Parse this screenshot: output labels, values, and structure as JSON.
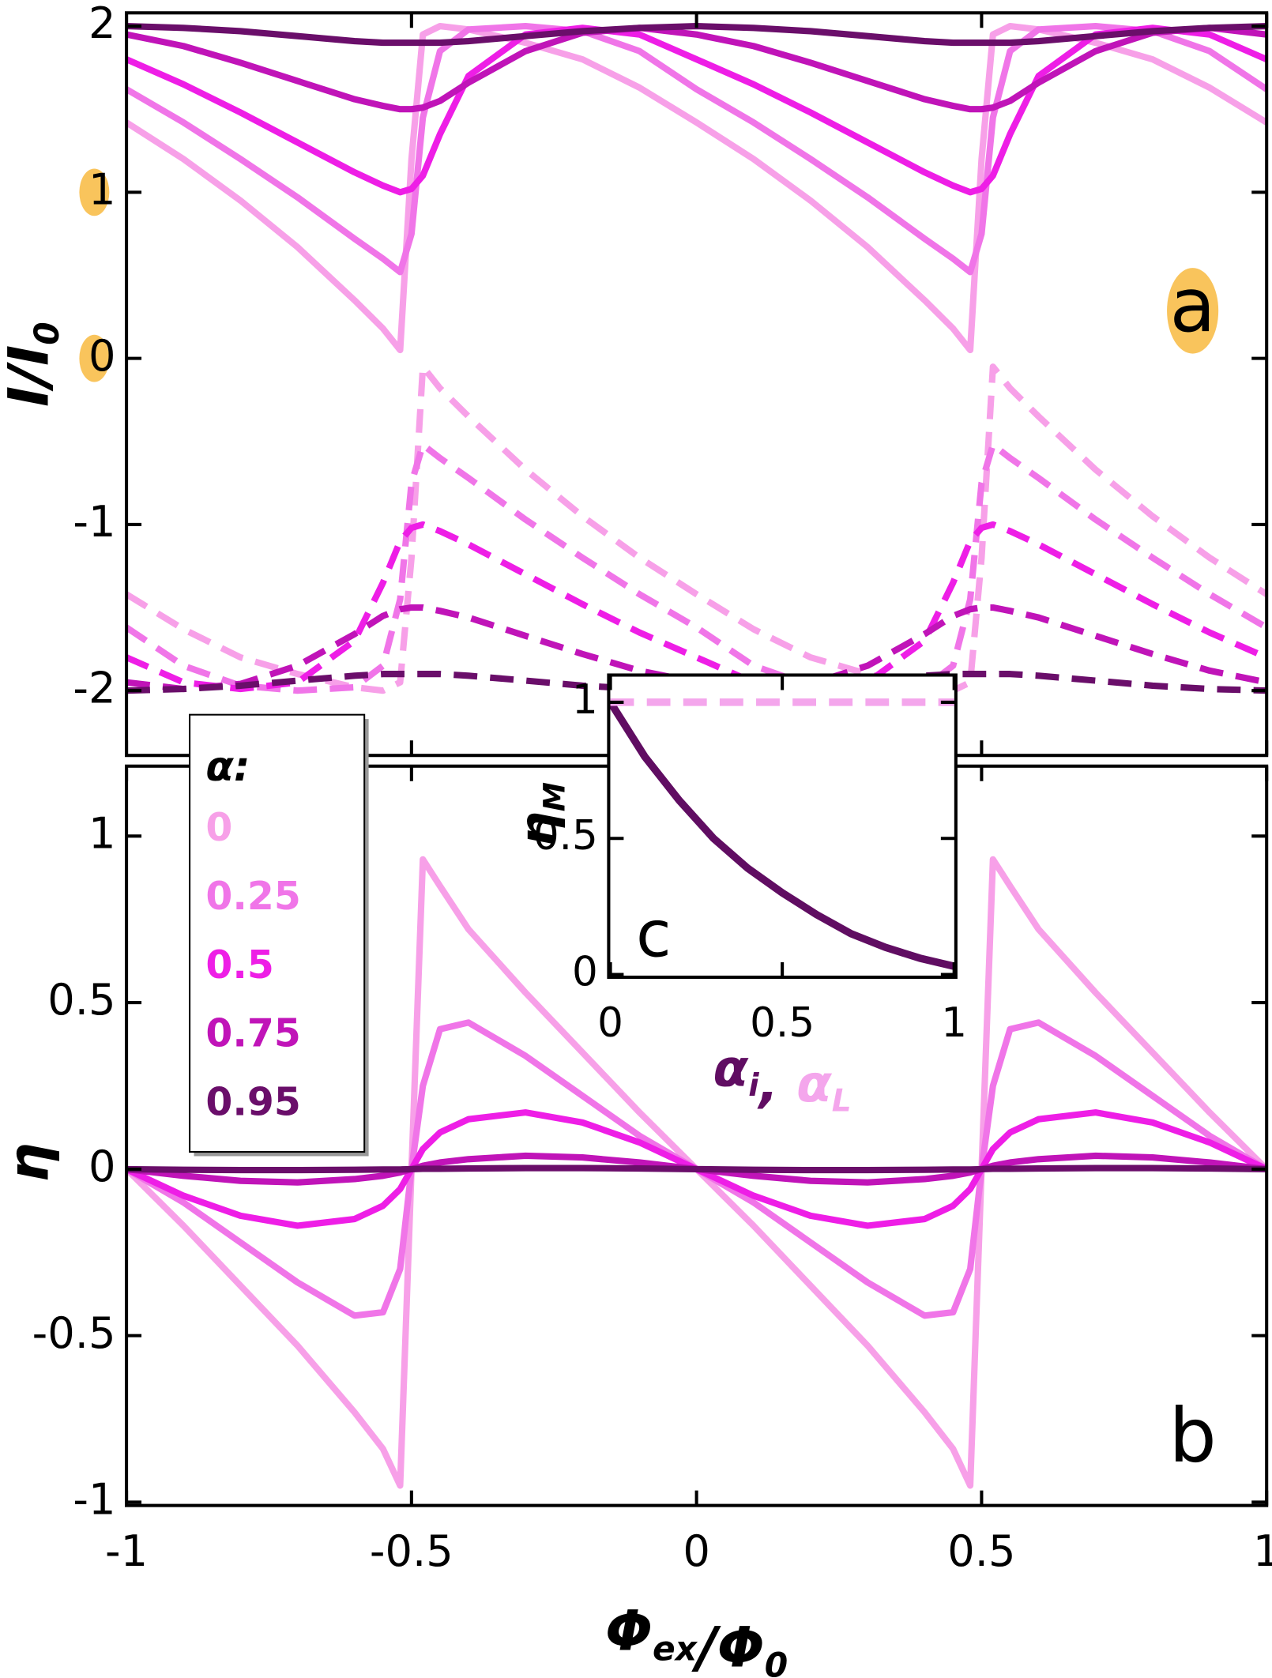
{
  "chart_data": [
    {
      "type": "line",
      "panel_label": "a",
      "ylabel": {
        "text": "I/I",
        "sub": "0"
      },
      "highlight": {
        "color": "#f9c45c",
        "yticks": [
          1,
          0
        ],
        "panel_label": true
      },
      "x": [
        -1,
        -0.9,
        -0.8,
        -0.7,
        -0.6,
        -0.55,
        -0.52,
        -0.5,
        -0.48,
        -0.45,
        -0.4,
        -0.3,
        -0.2,
        -0.1,
        0,
        0.1,
        0.2,
        0.3,
        0.4,
        0.45,
        0.48,
        0.5,
        0.52,
        0.55,
        0.6,
        0.7,
        0.8,
        0.9,
        1
      ],
      "xlim": [
        -1,
        1
      ],
      "xticks": [
        -1,
        -0.5,
        0,
        0.5,
        1
      ],
      "ylim": [
        -2.39,
        2.08
      ],
      "yticks": [
        -2,
        -1,
        0,
        1,
        2
      ],
      "series": [
        {
          "color": "#f7a0e8",
          "dashed": false,
          "values": [
            1.42,
            1.2,
            0.95,
            0.67,
            0.35,
            0.18,
            0.05,
            1.2,
            1.95,
            2.0,
            1.98,
            1.9,
            1.8,
            1.63,
            1.42,
            1.2,
            0.95,
            0.67,
            0.35,
            0.18,
            0.05,
            1.2,
            1.95,
            2.0,
            1.98,
            1.9,
            1.8,
            1.63,
            1.42
          ]
        },
        {
          "color": "#f075e8",
          "dashed": false,
          "values": [
            1.62,
            1.42,
            1.2,
            0.97,
            0.72,
            0.6,
            0.52,
            0.75,
            1.45,
            1.85,
            1.98,
            2.0,
            1.97,
            1.85,
            1.62,
            1.42,
            1.2,
            0.97,
            0.72,
            0.6,
            0.52,
            0.75,
            1.45,
            1.85,
            1.98,
            2.0,
            1.97,
            1.85,
            1.62
          ]
        },
        {
          "color": "#ee1ee6",
          "dashed": false,
          "values": [
            1.8,
            1.65,
            1.48,
            1.3,
            1.12,
            1.04,
            1.0,
            1.02,
            1.1,
            1.35,
            1.7,
            1.95,
            1.99,
            1.95,
            1.8,
            1.65,
            1.48,
            1.3,
            1.12,
            1.04,
            1.0,
            1.02,
            1.1,
            1.35,
            1.7,
            1.95,
            1.99,
            1.95,
            1.8
          ]
        },
        {
          "color": "#c014b8",
          "dashed": false,
          "values": [
            1.95,
            1.88,
            1.78,
            1.67,
            1.56,
            1.52,
            1.5,
            1.5,
            1.51,
            1.55,
            1.66,
            1.85,
            1.96,
            1.99,
            1.95,
            1.88,
            1.78,
            1.67,
            1.56,
            1.52,
            1.5,
            1.5,
            1.51,
            1.55,
            1.66,
            1.85,
            1.96,
            1.99,
            1.95
          ]
        },
        {
          "color": "#6a0e6a",
          "dashed": false,
          "values": [
            2.0,
            1.99,
            1.97,
            1.94,
            1.91,
            1.9,
            1.9,
            1.9,
            1.9,
            1.9,
            1.91,
            1.94,
            1.97,
            1.99,
            2.0,
            1.99,
            1.97,
            1.94,
            1.91,
            1.9,
            1.9,
            1.9,
            1.9,
            1.9,
            1.91,
            1.94,
            1.97,
            1.99,
            2.0
          ]
        },
        {
          "color": "#f7a0e8",
          "dashed": true,
          "values": [
            -1.42,
            -1.63,
            -1.8,
            -1.9,
            -1.98,
            -2.0,
            -1.95,
            -1.2,
            -0.05,
            -0.18,
            -0.35,
            -0.67,
            -0.95,
            -1.2,
            -1.42,
            -1.63,
            -1.8,
            -1.9,
            -1.98,
            -2.0,
            -1.95,
            -1.2,
            -0.05,
            -0.18,
            -0.35,
            -0.67,
            -0.95,
            -1.2,
            -1.42
          ]
        },
        {
          "color": "#f075e8",
          "dashed": true,
          "values": [
            -1.62,
            -1.85,
            -1.97,
            -2.0,
            -1.98,
            -1.85,
            -1.45,
            -0.75,
            -0.52,
            -0.6,
            -0.72,
            -0.97,
            -1.2,
            -1.42,
            -1.62,
            -1.85,
            -1.97,
            -2.0,
            -1.98,
            -1.85,
            -1.45,
            -0.75,
            -0.52,
            -0.6,
            -0.72,
            -0.97,
            -1.2,
            -1.42,
            -1.62
          ]
        },
        {
          "color": "#ee1ee6",
          "dashed": true,
          "values": [
            -1.8,
            -1.95,
            -1.99,
            -1.95,
            -1.7,
            -1.35,
            -1.1,
            -1.02,
            -1.0,
            -1.04,
            -1.12,
            -1.3,
            -1.48,
            -1.65,
            -1.8,
            -1.95,
            -1.99,
            -1.95,
            -1.7,
            -1.35,
            -1.1,
            -1.02,
            -1.0,
            -1.04,
            -1.12,
            -1.3,
            -1.48,
            -1.65,
            -1.8
          ]
        },
        {
          "color": "#c014b8",
          "dashed": true,
          "values": [
            -1.95,
            -1.99,
            -1.96,
            -1.85,
            -1.66,
            -1.55,
            -1.51,
            -1.5,
            -1.5,
            -1.52,
            -1.56,
            -1.67,
            -1.78,
            -1.88,
            -1.95,
            -1.99,
            -1.96,
            -1.85,
            -1.66,
            -1.55,
            -1.51,
            -1.5,
            -1.5,
            -1.52,
            -1.56,
            -1.67,
            -1.78,
            -1.88,
            -1.95
          ]
        },
        {
          "color": "#6a0e6a",
          "dashed": true,
          "values": [
            -2.0,
            -1.99,
            -1.97,
            -1.94,
            -1.91,
            -1.9,
            -1.9,
            -1.9,
            -1.9,
            -1.9,
            -1.91,
            -1.94,
            -1.97,
            -1.99,
            -2.0,
            -1.99,
            -1.97,
            -1.94,
            -1.91,
            -1.9,
            -1.9,
            -1.9,
            -1.9,
            -1.9,
            -1.91,
            -1.94,
            -1.97,
            -1.99,
            -2.0
          ]
        }
      ]
    },
    {
      "type": "line",
      "panel_label": "b",
      "ylabel": {
        "text": "η"
      },
      "xlabel": [
        {
          "text": "Φ",
          "sub": "ex"
        },
        {
          "text": "/Φ",
          "sub": "0"
        }
      ],
      "legend": {
        "title": "α:"
      },
      "x": [
        -1,
        -0.9,
        -0.8,
        -0.7,
        -0.6,
        -0.55,
        -0.52,
        -0.5,
        -0.48,
        -0.45,
        -0.4,
        -0.3,
        -0.2,
        -0.1,
        0,
        0.1,
        0.2,
        0.3,
        0.4,
        0.45,
        0.48,
        0.5,
        0.52,
        0.55,
        0.6,
        0.7,
        0.8,
        0.9,
        1
      ],
      "xlim": [
        -1,
        1
      ],
      "xticks": [
        -1,
        -0.5,
        0,
        0.5,
        1
      ],
      "ylim": [
        -1.01,
        1.21
      ],
      "yticks": [
        -1,
        -0.5,
        0,
        0.5,
        1
      ],
      "series": [
        {
          "name": "0",
          "color": "#f7a0e8",
          "values": [
            0,
            -0.17,
            -0.35,
            -0.53,
            -0.73,
            -0.84,
            -0.95,
            0,
            0.93,
            0.85,
            0.72,
            0.53,
            0.35,
            0.17,
            0,
            -0.17,
            -0.35,
            -0.53,
            -0.73,
            -0.84,
            -0.95,
            0,
            0.93,
            0.85,
            0.72,
            0.53,
            0.35,
            0.17,
            0
          ]
        },
        {
          "name": "0.25",
          "color": "#f075e8",
          "values": [
            0,
            -0.1,
            -0.22,
            -0.34,
            -0.44,
            -0.43,
            -0.3,
            0,
            0.25,
            0.42,
            0.44,
            0.34,
            0.22,
            0.1,
            0,
            -0.1,
            -0.22,
            -0.34,
            -0.44,
            -0.43,
            -0.3,
            0,
            0.25,
            0.42,
            0.44,
            0.34,
            0.22,
            0.1,
            0
          ]
        },
        {
          "name": "0.5",
          "color": "#ee1ee6",
          "values": [
            0,
            -0.08,
            -0.14,
            -0.17,
            -0.15,
            -0.11,
            -0.06,
            0,
            0.06,
            0.11,
            0.15,
            0.17,
            0.14,
            0.08,
            0,
            -0.08,
            -0.14,
            -0.17,
            -0.15,
            -0.11,
            -0.06,
            0,
            0.06,
            0.11,
            0.15,
            0.17,
            0.14,
            0.08,
            0
          ]
        },
        {
          "name": "0.75",
          "color": "#c014b8",
          "values": [
            0,
            -0.02,
            -0.035,
            -0.04,
            -0.03,
            -0.02,
            -0.01,
            0,
            0.01,
            0.02,
            0.03,
            0.04,
            0.035,
            0.02,
            0,
            -0.02,
            -0.035,
            -0.04,
            -0.03,
            -0.02,
            -0.01,
            0,
            0.01,
            0.02,
            0.03,
            0.04,
            0.035,
            0.02,
            0
          ]
        },
        {
          "name": "0.95",
          "color": "#6a0e6a",
          "values": [
            0,
            -0.002,
            -0.003,
            -0.003,
            -0.002,
            -0.001,
            -0.001,
            0,
            0.001,
            0.001,
            0.002,
            0.003,
            0.003,
            0.002,
            0,
            -0.002,
            -0.003,
            -0.003,
            -0.002,
            -0.001,
            -0.001,
            0,
            0.001,
            0.001,
            0.002,
            0.003,
            0.003,
            0.002,
            0
          ]
        }
      ]
    },
    {
      "type": "line",
      "panel_label": "c",
      "ylabel": {
        "text": "η",
        "sub": "M"
      },
      "xlabel": [
        {
          "text": "α",
          "sub": "i",
          "color": "#600d62"
        },
        {
          "text": ", ",
          "color": "#600d62"
        },
        {
          "text": "α",
          "sub": "L",
          "color": "#f4a6ec"
        }
      ],
      "x": [
        0,
        0.1,
        0.2,
        0.3,
        0.4,
        0.5,
        0.6,
        0.7,
        0.8,
        0.9,
        1
      ],
      "xlim": [
        -0.005,
        1.005
      ],
      "xticks": [
        0,
        0.5,
        1
      ],
      "ylim": [
        -0.01,
        1.1
      ],
      "yticks": [
        0,
        0.5,
        1
      ],
      "series": [
        {
          "color": "#600d62",
          "dashed": false,
          "values": [
            1,
            0.8,
            0.64,
            0.5,
            0.39,
            0.3,
            0.22,
            0.15,
            0.1,
            0.06,
            0.03
          ]
        },
        {
          "color": "#f4a6ec",
          "dashed": true,
          "values": [
            1,
            1,
            1,
            1,
            1,
            1,
            1,
            1,
            1,
            1,
            1
          ]
        }
      ]
    }
  ]
}
